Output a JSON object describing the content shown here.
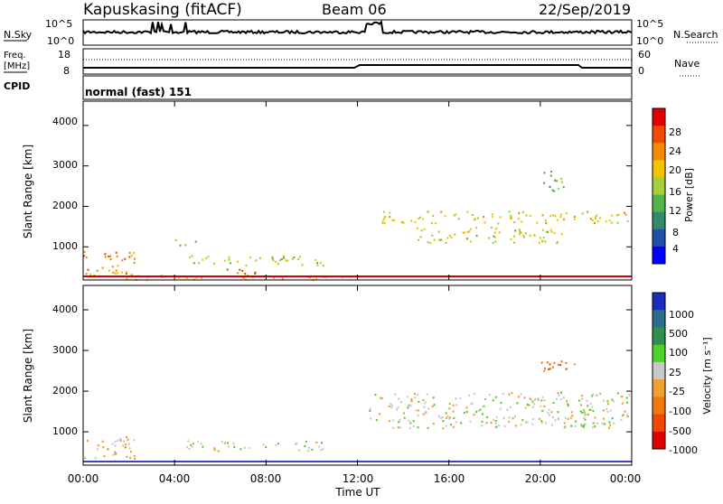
{
  "header": {
    "station": "Kapuskasing (fitACF)",
    "beam": "Beam 06",
    "date": "22/Sep/2019"
  },
  "strips": {
    "nsky_label": "N.Sky",
    "nsky_ticks": [
      "10^5",
      "10^0"
    ],
    "nsearch_label": "N.Search",
    "nsearch_ticks": [
      "10^5",
      "10^0"
    ],
    "freq_label_line1": "Freq.",
    "freq_label_line2": "[MHz]",
    "freq_ticks": [
      "18",
      "8"
    ],
    "nave_label": "Nave",
    "nave_ticks": [
      "60",
      "0"
    ],
    "cpid_label": "CPID",
    "cpid_value": "normal (fast) 151"
  },
  "panels": {
    "power": {
      "ylabel": "Slant Range [km]",
      "yticks": [
        "4000",
        "3000",
        "2000",
        "1000"
      ],
      "colorbar_label": "Power [dB]",
      "colorbar_ticks": [
        "28",
        "24",
        "20",
        "16",
        "12",
        "8",
        "4"
      ],
      "colors": [
        "#0000ff",
        "#1f4fa6",
        "#2f8a6e",
        "#53b248",
        "#a7cf3a",
        "#f2c400",
        "#f38a00",
        "#f24b00",
        "#e00000"
      ]
    },
    "velocity": {
      "ylabel": "Slant Range [km]",
      "yticks": [
        "4000",
        "3000",
        "2000",
        "1000"
      ],
      "colorbar_label": "Velocity [m s⁻¹]",
      "colorbar_ticks": [
        "1000",
        "500",
        "100",
        "25",
        "-25",
        "-100",
        "-500",
        "-1000"
      ],
      "colors": [
        "#1a2ebb",
        "#2b6e8c",
        "#2e8f50",
        "#4ed12a",
        "#c8c8c8",
        "#f0a030",
        "#ef7a10",
        "#ee4a00",
        "#e00000"
      ]
    }
  },
  "xaxis": {
    "label": "Time UT",
    "ticks": [
      "00:00",
      "04:00",
      "08:00",
      "12:00",
      "16:00",
      "20:00",
      "00:00"
    ]
  },
  "chart_data": [
    {
      "type": "heatmap",
      "title": "Power",
      "xlabel": "Time UT",
      "ylabel": "Slant Range [km]",
      "xlim_hours": [
        0,
        24
      ],
      "ylim_km": [
        180,
        4600
      ],
      "zlabel": "Power [dB]",
      "zlim": [
        0,
        30
      ],
      "regions": [
        {
          "t": [
            0.0,
            2.3
          ],
          "r": [
            300,
            900
          ],
          "value_db": 22
        },
        {
          "t": [
            0.5,
            12.0
          ],
          "r": [
            200,
            320
          ],
          "value_db": 18
        },
        {
          "t": [
            4.5,
            10.5
          ],
          "r": [
            550,
            800
          ],
          "value_db": 16
        },
        {
          "t": [
            6.0,
            7.5
          ],
          "r": [
            250,
            500
          ],
          "value_db": 26
        },
        {
          "t": [
            4.0,
            5.0
          ],
          "r": [
            1050,
            1200
          ],
          "value_db": 12
        },
        {
          "t": [
            13.0,
            24.0
          ],
          "r": [
            1600,
            1900
          ],
          "value_db": 18
        },
        {
          "t": [
            14.5,
            21.0
          ],
          "r": [
            1100,
            1500
          ],
          "value_db": 16
        },
        {
          "t": [
            20.0,
            21.0
          ],
          "r": [
            2400,
            2900
          ],
          "value_db": 12
        }
      ]
    },
    {
      "type": "heatmap",
      "title": "Velocity",
      "xlabel": "Time UT",
      "ylabel": "Slant Range [km]",
      "xlim_hours": [
        0,
        24
      ],
      "ylim_km": [
        180,
        4600
      ],
      "zlabel": "Velocity [m s-1]",
      "zlim": [
        -1000,
        1000
      ],
      "regions": [
        {
          "t": [
            0.0,
            2.3
          ],
          "r": [
            300,
            900
          ],
          "value_ms": -150
        },
        {
          "t": [
            4.5,
            10.5
          ],
          "r": [
            550,
            800
          ],
          "value_ms": 60
        },
        {
          "t": [
            12.5,
            24.0
          ],
          "r": [
            1100,
            2000
          ],
          "value_ms": 0
        },
        {
          "t": [
            20.0,
            21.5
          ],
          "r": [
            2500,
            2900
          ],
          "value_ms": -400
        }
      ]
    }
  ]
}
